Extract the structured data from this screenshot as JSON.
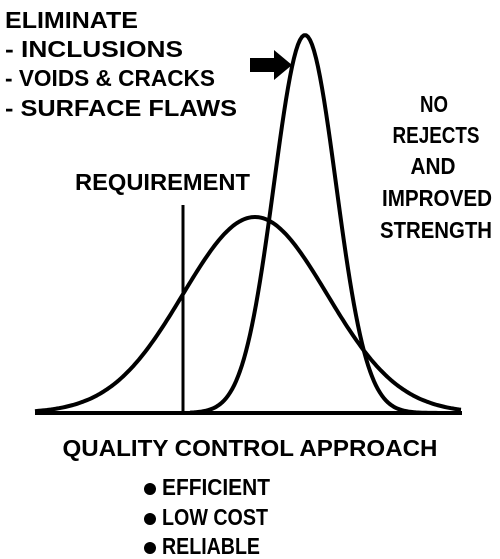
{
  "left_text": {
    "title": "ELIMINATE",
    "items": [
      "- INCLUSIONS",
      "- VOIDS & CRACKS",
      "- SURFACE FLAWS"
    ]
  },
  "right_text": [
    "NO",
    "REJECTS",
    "AND",
    "IMPROVED",
    "STRENGTH"
  ],
  "requirement_label": "REQUIREMENT",
  "footer": {
    "title": "QUALITY CONTROL APPROACH",
    "bullets": [
      "EFFICIENT",
      "LOW COST",
      "RELIABLE"
    ]
  }
}
